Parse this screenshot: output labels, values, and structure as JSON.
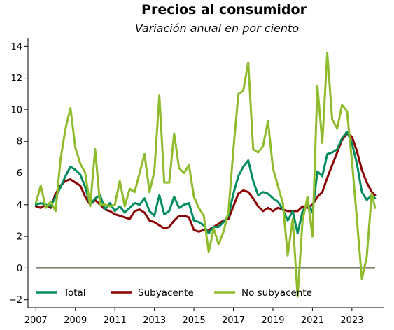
{
  "chart_data": {
    "type": "line",
    "title": "Precios al consumidor",
    "subtitle": "Variación anual en por ciento",
    "xlabel": "",
    "ylabel": "",
    "xlim": [
      2006.6,
      2024.6
    ],
    "ylim": [
      -2.5,
      14.5
    ],
    "x_ticks": [
      2007,
      2009,
      2011,
      2013,
      2015,
      2017,
      2019,
      2021,
      2023
    ],
    "x_tick_labels": [
      "2007",
      "2009",
      "2011",
      "2013",
      "2015",
      "2017",
      "2019",
      "2021",
      "2023"
    ],
    "y_ticks": [
      -2,
      0,
      2,
      4,
      6,
      8,
      10,
      12,
      14
    ],
    "y_tick_labels": [
      "−2",
      "0",
      "2",
      "4",
      "6",
      "8",
      "10",
      "12",
      "14"
    ],
    "reference_line": 0,
    "reference_line_color": "#3a2e1a",
    "grid": false,
    "legend_position": "bottom",
    "x": [
      2007.0,
      2007.25,
      2007.5,
      2007.75,
      2008.0,
      2008.25,
      2008.5,
      2008.75,
      2009.0,
      2009.25,
      2009.5,
      2009.75,
      2010.0,
      2010.25,
      2010.5,
      2010.75,
      2011.0,
      2011.25,
      2011.5,
      2011.75,
      2012.0,
      2012.25,
      2012.5,
      2012.75,
      2013.0,
      2013.25,
      2013.5,
      2013.75,
      2014.0,
      2014.25,
      2014.5,
      2014.75,
      2015.0,
      2015.25,
      2015.5,
      2015.75,
      2016.0,
      2016.25,
      2016.5,
      2016.75,
      2017.0,
      2017.25,
      2017.5,
      2017.75,
      2018.0,
      2018.25,
      2018.5,
      2018.75,
      2019.0,
      2019.25,
      2019.5,
      2019.75,
      2020.0,
      2020.25,
      2020.5,
      2020.75,
      2021.0,
      2021.25,
      2021.5,
      2021.75,
      2022.0,
      2022.25,
      2022.5,
      2022.75,
      2023.0,
      2023.25,
      2023.5,
      2023.75,
      2024.0,
      2024.17
    ],
    "series": [
      {
        "name": "Total",
        "color": "#008c5e",
        "values": [
          4.0,
          4.1,
          4.0,
          3.9,
          4.5,
          5.1,
          5.8,
          6.4,
          6.2,
          5.9,
          5.1,
          4.0,
          4.4,
          4.6,
          3.7,
          4.1,
          3.6,
          3.9,
          3.5,
          3.8,
          4.1,
          4.0,
          4.4,
          3.6,
          3.3,
          4.6,
          3.4,
          3.6,
          4.5,
          3.8,
          4.0,
          4.1,
          3.0,
          2.9,
          2.7,
          2.2,
          2.6,
          2.6,
          2.9,
          3.3,
          4.7,
          5.8,
          6.4,
          6.8,
          5.5,
          4.6,
          4.8,
          4.7,
          4.4,
          4.2,
          3.7,
          3.0,
          3.6,
          2.2,
          3.6,
          4.1,
          3.5,
          6.1,
          5.8,
          7.2,
          7.3,
          7.5,
          8.2,
          8.6,
          7.9,
          6.6,
          4.8,
          4.3,
          4.6,
          4.4
        ]
      },
      {
        "name": "Subyacente",
        "color": "#8b0000",
        "values": [
          3.9,
          3.8,
          4.0,
          3.8,
          4.7,
          5.2,
          5.5,
          5.6,
          5.4,
          5.2,
          4.5,
          4.0,
          4.3,
          4.0,
          3.7,
          3.6,
          3.4,
          3.3,
          3.2,
          3.1,
          3.6,
          3.7,
          3.5,
          3.0,
          2.9,
          2.7,
          2.5,
          2.6,
          3.0,
          3.3,
          3.3,
          3.2,
          2.4,
          2.3,
          2.4,
          2.4,
          2.6,
          2.8,
          3.0,
          3.1,
          3.9,
          4.7,
          4.9,
          4.8,
          4.4,
          3.9,
          3.6,
          3.8,
          3.6,
          3.8,
          3.7,
          3.6,
          3.6,
          3.6,
          3.9,
          3.8,
          4.0,
          4.5,
          4.8,
          5.7,
          6.5,
          7.3,
          8.1,
          8.5,
          8.3,
          7.4,
          6.2,
          5.4,
          4.8,
          4.6
        ]
      },
      {
        "name": "No subyacente",
        "color": "#8fbc2c",
        "values": [
          4.1,
          5.2,
          3.8,
          4.2,
          3.6,
          6.9,
          8.8,
          10.1,
          7.6,
          6.6,
          6.0,
          3.9,
          7.5,
          4.0,
          4.0,
          3.9,
          4.0,
          5.5,
          3.9,
          5.0,
          4.8,
          6.0,
          7.2,
          4.8,
          6.1,
          10.9,
          5.4,
          5.4,
          8.5,
          6.3,
          6.0,
          6.5,
          4.5,
          3.8,
          3.3,
          1.0,
          2.5,
          1.5,
          2.3,
          3.6,
          7.5,
          11.0,
          11.2,
          13.0,
          7.5,
          7.3,
          7.7,
          9.3,
          6.3,
          5.2,
          4.1,
          0.8,
          3.1,
          -1.8,
          3.0,
          4.5,
          2.0,
          11.5,
          7.9,
          13.6,
          9.4,
          8.8,
          10.3,
          9.9,
          6.8,
          3.1,
          -0.7,
          0.7,
          4.7,
          3.8
        ]
      }
    ]
  }
}
